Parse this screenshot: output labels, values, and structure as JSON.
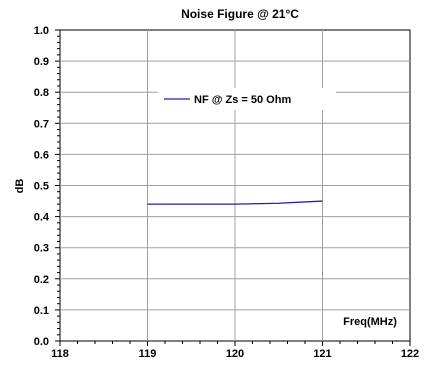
{
  "chart_data": {
    "type": "line",
    "title": "Noise Figure @ 21°C",
    "xlabel": "Freq(MHz)",
    "ylabel": "dB",
    "xlim": [
      118,
      122
    ],
    "ylim": [
      0.0,
      1.0
    ],
    "x_ticks": [
      118,
      119,
      120,
      121,
      122
    ],
    "x_tick_labels": [
      "118",
      "119",
      "120",
      "121",
      "122"
    ],
    "y_ticks": [
      0.0,
      0.1,
      0.2,
      0.3,
      0.4,
      0.5,
      0.6,
      0.7,
      0.8,
      0.9,
      1.0
    ],
    "y_tick_labels": [
      "0.0",
      "0.1",
      "0.2",
      "0.3",
      "0.4",
      "0.5",
      "0.6",
      "0.7",
      "0.8",
      "0.9",
      "1.0"
    ],
    "grid": true,
    "legend_position": "top-center",
    "series": [
      {
        "name": "NF @ Zs = 50 Ohm",
        "color": "#1f1fb4",
        "x": [
          119,
          119.5,
          120,
          120.5,
          121
        ],
        "y": [
          0.44,
          0.44,
          0.44,
          0.443,
          0.45
        ]
      }
    ]
  }
}
